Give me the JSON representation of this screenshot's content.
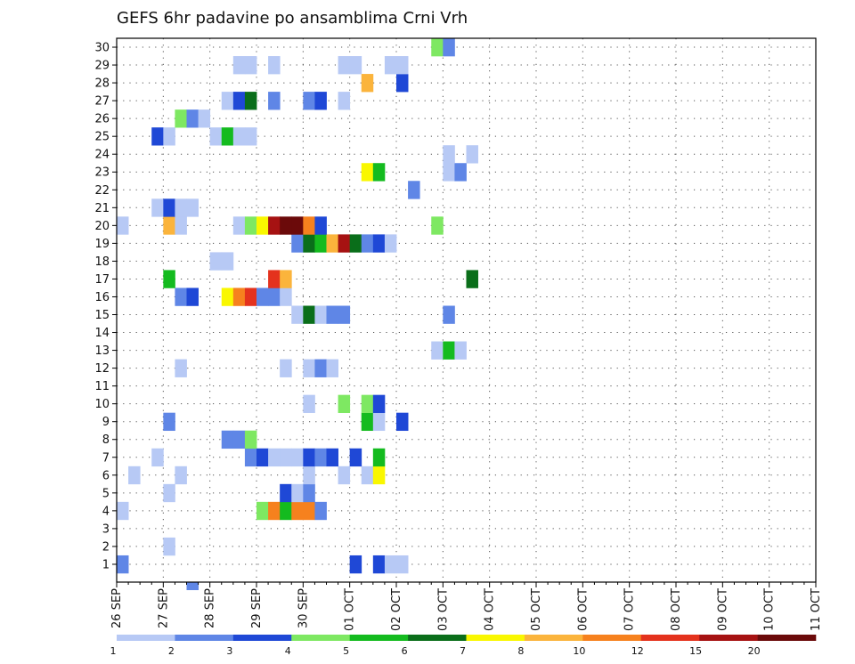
{
  "chart_data": {
    "type": "heatmap",
    "title": "GEFS 6hr padavine po ansamblima Crni Vrh",
    "xlabel": "",
    "ylabel": "",
    "x_ticks": [
      "26 SEP",
      "27 SEP",
      "28 SEP",
      "29 SEP",
      "30 SEP",
      "01 OCT",
      "02 OCT",
      "03 OCT",
      "04 OCT",
      "05 OCT",
      "06 OCT",
      "07 OCT",
      "08 OCT",
      "09 OCT",
      "10 OCT",
      "11 OCT"
    ],
    "y_ticks": [
      "1",
      "2",
      "3",
      "4",
      "5",
      "6",
      "7",
      "8",
      "9",
      "10",
      "11",
      "12",
      "13",
      "14",
      "15",
      "16",
      "17",
      "18",
      "19",
      "20",
      "21",
      "22",
      "23",
      "24",
      "25",
      "26",
      "27",
      "28",
      "29",
      "30"
    ],
    "x_range_steps": [
      0,
      60
    ],
    "steps_per_day": 4,
    "y_range": [
      0,
      30
    ],
    "grid": true,
    "legend": {
      "position": "bottom",
      "boundaries": [
        "1",
        "2",
        "3",
        "4",
        "5",
        "6",
        "7",
        "8",
        "10",
        "12",
        "15",
        "20"
      ],
      "colors": [
        "#b7c9f5",
        "#5f86e6",
        "#1f48d6",
        "#7ee862",
        "#14bb1f",
        "#0a6e1a",
        "#f9f700",
        "#fbb43c",
        "#f6811e",
        "#e4321d",
        "#a61212",
        "#6b0a0a"
      ]
    },
    "cells": [
      {
        "member": 1,
        "step": 1,
        "cat": 2
      },
      {
        "member": 1,
        "step": 21,
        "cat": 3
      },
      {
        "member": 1,
        "step": 23,
        "cat": 3
      },
      {
        "member": 1,
        "step": 24,
        "cat": 1
      },
      {
        "member": 1,
        "step": 25,
        "cat": 1
      },
      {
        "member": 2,
        "step": 5,
        "cat": 1
      },
      {
        "member": 4,
        "step": 1,
        "cat": 1
      },
      {
        "member": 4,
        "step": 13,
        "cat": 4
      },
      {
        "member": 4,
        "step": 14,
        "cat": 9
      },
      {
        "member": 4,
        "step": 15,
        "cat": 5
      },
      {
        "member": 4,
        "step": 16,
        "cat": 9
      },
      {
        "member": 4,
        "step": 17,
        "cat": 9
      },
      {
        "member": 4,
        "step": 18,
        "cat": 2
      },
      {
        "member": 5,
        "step": 5,
        "cat": 1
      },
      {
        "member": 5,
        "step": 15,
        "cat": 3
      },
      {
        "member": 5,
        "step": 16,
        "cat": 1
      },
      {
        "member": 5,
        "step": 17,
        "cat": 2
      },
      {
        "member": 6,
        "step": 2,
        "cat": 1
      },
      {
        "member": 6,
        "step": 6,
        "cat": 1
      },
      {
        "member": 6,
        "step": 17,
        "cat": 1
      },
      {
        "member": 6,
        "step": 20,
        "cat": 1
      },
      {
        "member": 6,
        "step": 22,
        "cat": 1
      },
      {
        "member": 6,
        "step": 23,
        "cat": 7
      },
      {
        "member": 7,
        "step": 4,
        "cat": 1
      },
      {
        "member": 7,
        "step": 12,
        "cat": 2
      },
      {
        "member": 7,
        "step": 13,
        "cat": 3
      },
      {
        "member": 7,
        "step": 14,
        "cat": 1
      },
      {
        "member": 7,
        "step": 15,
        "cat": 1
      },
      {
        "member": 7,
        "step": 16,
        "cat": 1
      },
      {
        "member": 7,
        "step": 17,
        "cat": 3
      },
      {
        "member": 7,
        "step": 18,
        "cat": 2
      },
      {
        "member": 7,
        "step": 19,
        "cat": 3
      },
      {
        "member": 7,
        "step": 21,
        "cat": 3
      },
      {
        "member": 7,
        "step": 23,
        "cat": 5
      },
      {
        "member": 8,
        "step": 10,
        "cat": 2
      },
      {
        "member": 8,
        "step": 11,
        "cat": 2
      },
      {
        "member": 8,
        "step": 12,
        "cat": 4
      },
      {
        "member": 9,
        "step": 5,
        "cat": 2
      },
      {
        "member": 9,
        "step": 22,
        "cat": 5
      },
      {
        "member": 9,
        "step": 23,
        "cat": 1
      },
      {
        "member": 9,
        "step": 25,
        "cat": 3
      },
      {
        "member": 10,
        "step": 17,
        "cat": 1
      },
      {
        "member": 10,
        "step": 20,
        "cat": 4
      },
      {
        "member": 10,
        "step": 22,
        "cat": 4
      },
      {
        "member": 10,
        "step": 23,
        "cat": 3
      },
      {
        "member": 12,
        "step": 6,
        "cat": 1
      },
      {
        "member": 12,
        "step": 15,
        "cat": 1
      },
      {
        "member": 12,
        "step": 17,
        "cat": 1
      },
      {
        "member": 12,
        "step": 18,
        "cat": 2
      },
      {
        "member": 12,
        "step": 19,
        "cat": 1
      },
      {
        "member": 13,
        "step": 28,
        "cat": 1
      },
      {
        "member": 13,
        "step": 29,
        "cat": 5
      },
      {
        "member": 13,
        "step": 30,
        "cat": 1
      },
      {
        "member": 15,
        "step": 16,
        "cat": 1
      },
      {
        "member": 15,
        "step": 17,
        "cat": 6
      },
      {
        "member": 15,
        "step": 18,
        "cat": 1
      },
      {
        "member": 15,
        "step": 19,
        "cat": 2
      },
      {
        "member": 15,
        "step": 20,
        "cat": 2
      },
      {
        "member": 15,
        "step": 29,
        "cat": 2
      },
      {
        "member": 16,
        "step": 6,
        "cat": 2
      },
      {
        "member": 16,
        "step": 7,
        "cat": 3
      },
      {
        "member": 16,
        "step": 10,
        "cat": 7
      },
      {
        "member": 16,
        "step": 11,
        "cat": 9
      },
      {
        "member": 16,
        "step": 12,
        "cat": 10
      },
      {
        "member": 16,
        "step": 13,
        "cat": 2
      },
      {
        "member": 16,
        "step": 14,
        "cat": 2
      },
      {
        "member": 16,
        "step": 15,
        "cat": 1
      },
      {
        "member": 17,
        "step": 5,
        "cat": 5
      },
      {
        "member": 17,
        "step": 14,
        "cat": 10
      },
      {
        "member": 17,
        "step": 15,
        "cat": 8
      },
      {
        "member": 17,
        "step": 31,
        "cat": 6
      },
      {
        "member": 18,
        "step": 9,
        "cat": 1
      },
      {
        "member": 18,
        "step": 10,
        "cat": 1
      },
      {
        "member": 19,
        "step": 16,
        "cat": 2
      },
      {
        "member": 19,
        "step": 17,
        "cat": 6
      },
      {
        "member": 19,
        "step": 18,
        "cat": 5
      },
      {
        "member": 19,
        "step": 19,
        "cat": 8
      },
      {
        "member": 19,
        "step": 20,
        "cat": 11
      },
      {
        "member": 19,
        "step": 21,
        "cat": 6
      },
      {
        "member": 19,
        "step": 22,
        "cat": 2
      },
      {
        "member": 19,
        "step": 23,
        "cat": 3
      },
      {
        "member": 19,
        "step": 24,
        "cat": 1
      },
      {
        "member": 20,
        "step": 1,
        "cat": 1
      },
      {
        "member": 20,
        "step": 5,
        "cat": 8
      },
      {
        "member": 20,
        "step": 6,
        "cat": 1
      },
      {
        "member": 20,
        "step": 11,
        "cat": 1
      },
      {
        "member": 20,
        "step": 12,
        "cat": 4
      },
      {
        "member": 20,
        "step": 13,
        "cat": 7
      },
      {
        "member": 20,
        "step": 14,
        "cat": 11
      },
      {
        "member": 20,
        "step": 15,
        "cat": 12
      },
      {
        "member": 20,
        "step": 16,
        "cat": 12
      },
      {
        "member": 20,
        "step": 17,
        "cat": 9
      },
      {
        "member": 20,
        "step": 18,
        "cat": 3
      },
      {
        "member": 20,
        "step": 28,
        "cat": 4
      },
      {
        "member": 21,
        "step": 4,
        "cat": 1
      },
      {
        "member": 21,
        "step": 5,
        "cat": 3
      },
      {
        "member": 21,
        "step": 6,
        "cat": 1
      },
      {
        "member": 21,
        "step": 7,
        "cat": 1
      },
      {
        "member": 22,
        "step": 26,
        "cat": 2
      },
      {
        "member": 23,
        "step": 22,
        "cat": 7
      },
      {
        "member": 23,
        "step": 23,
        "cat": 5
      },
      {
        "member": 23,
        "step": 29,
        "cat": 1
      },
      {
        "member": 23,
        "step": 30,
        "cat": 2
      },
      {
        "member": 24,
        "step": 29,
        "cat": 1
      },
      {
        "member": 24,
        "step": 31,
        "cat": 1
      },
      {
        "member": 25,
        "step": 4,
        "cat": 3
      },
      {
        "member": 25,
        "step": 5,
        "cat": 1
      },
      {
        "member": 25,
        "step": 9,
        "cat": 1
      },
      {
        "member": 25,
        "step": 10,
        "cat": 5
      },
      {
        "member": 25,
        "step": 11,
        "cat": 1
      },
      {
        "member": 25,
        "step": 12,
        "cat": 1
      },
      {
        "member": 26,
        "step": 6,
        "cat": 4
      },
      {
        "member": 26,
        "step": 7,
        "cat": 2
      },
      {
        "member": 26,
        "step": 8,
        "cat": 1
      },
      {
        "member": 27,
        "step": 10,
        "cat": 1
      },
      {
        "member": 27,
        "step": 11,
        "cat": 3
      },
      {
        "member": 27,
        "step": 12,
        "cat": 6
      },
      {
        "member": 27,
        "step": 14,
        "cat": 2
      },
      {
        "member": 27,
        "step": 17,
        "cat": 2
      },
      {
        "member": 27,
        "step": 18,
        "cat": 3
      },
      {
        "member": 27,
        "step": 20,
        "cat": 1
      },
      {
        "member": 28,
        "step": 22,
        "cat": 8
      },
      {
        "member": 28,
        "step": 25,
        "cat": 3
      },
      {
        "member": 29,
        "step": 11,
        "cat": 1
      },
      {
        "member": 29,
        "step": 12,
        "cat": 1
      },
      {
        "member": 29,
        "step": 14,
        "cat": 1
      },
      {
        "member": 29,
        "step": 20,
        "cat": 1
      },
      {
        "member": 29,
        "step": 21,
        "cat": 1
      },
      {
        "member": 29,
        "step": 24,
        "cat": 1
      },
      {
        "member": 29,
        "step": 25,
        "cat": 1
      },
      {
        "member": 30,
        "step": 28,
        "cat": 4
      },
      {
        "member": 30,
        "step": 29,
        "cat": 2
      }
    ],
    "below_axis_cells": [
      {
        "step": 7,
        "cat": 2
      }
    ]
  }
}
